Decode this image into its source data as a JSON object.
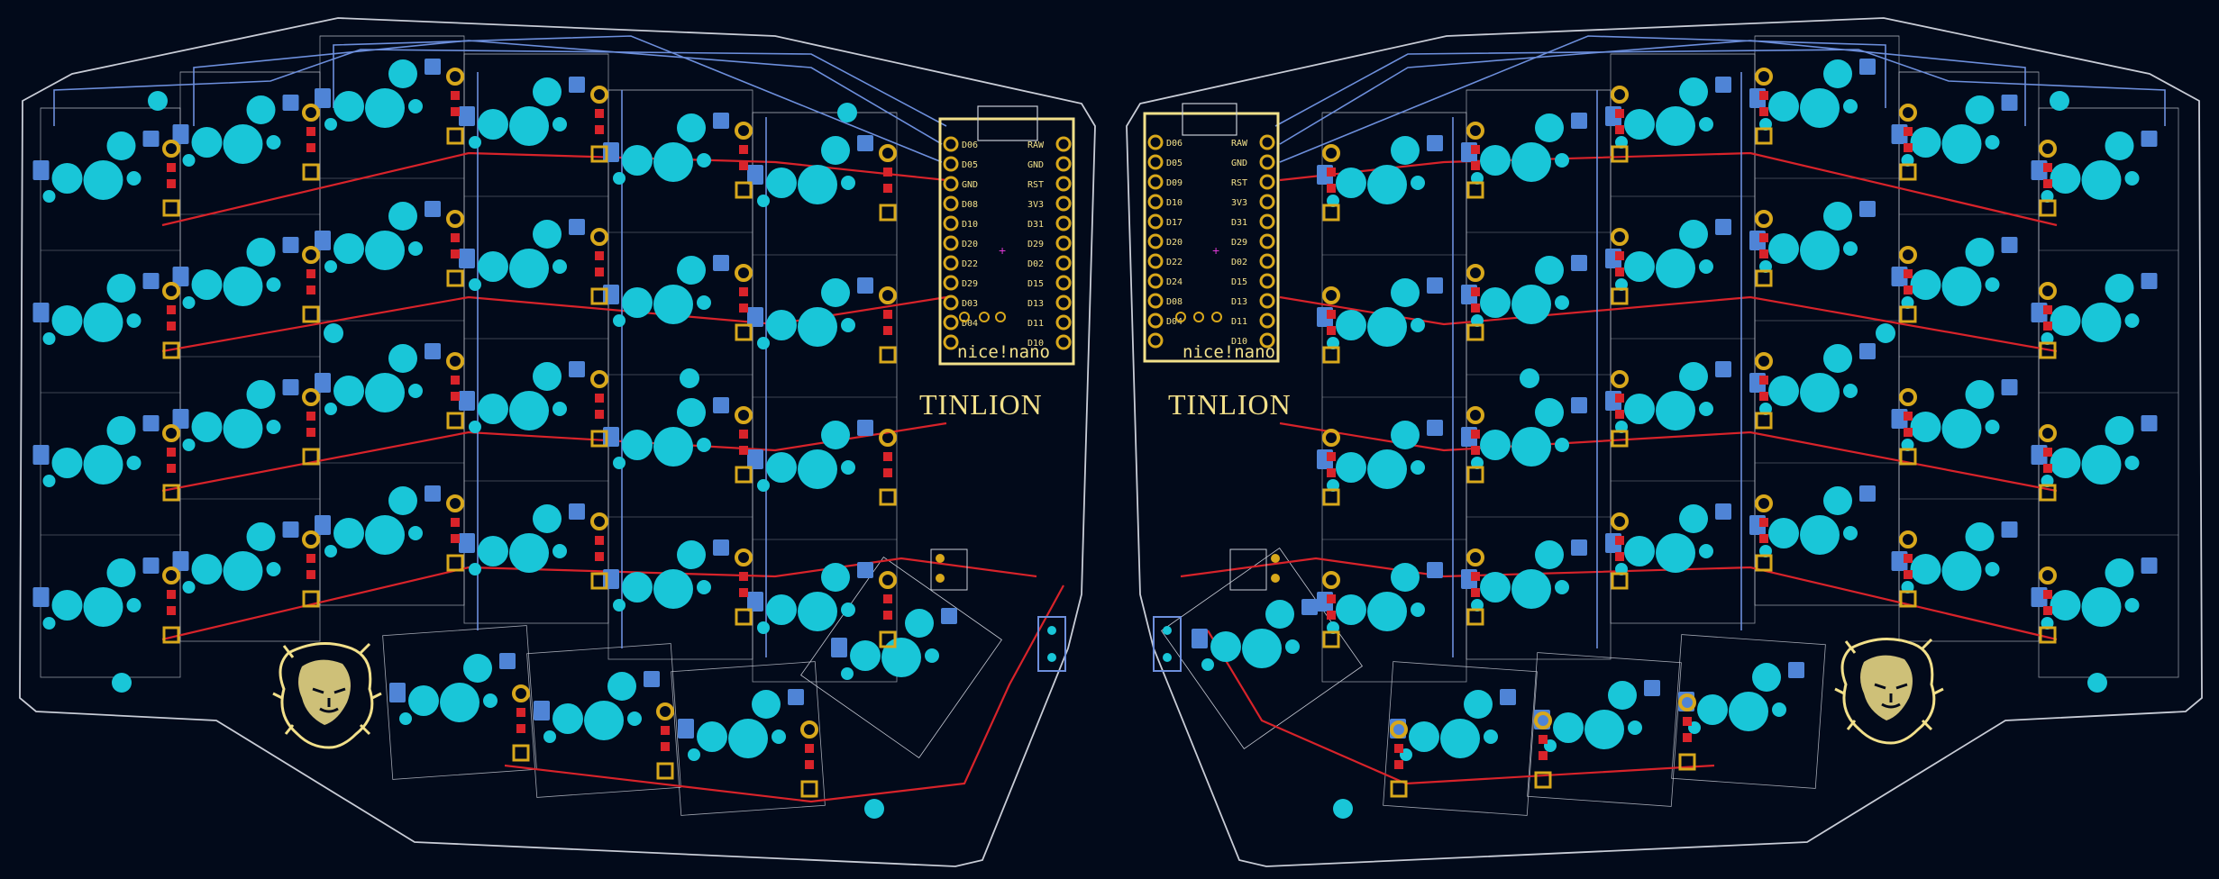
{
  "left": {
    "brand_label": "TINLION",
    "mcu_label": "nice!nano",
    "pins_left": [
      "D06",
      "D05",
      "GND",
      "D08",
      "D10",
      "D20",
      "D22",
      "D29",
      "D03",
      "D04"
    ],
    "pins_right": [
      "RAW",
      "GND",
      "RST",
      "3V3",
      "D31",
      "D29",
      "D02",
      "D15",
      "D13",
      "D11",
      "D10"
    ]
  },
  "right": {
    "brand_label": "TINLION",
    "mcu_label": "nice!nano",
    "pins_left": [
      "D06",
      "D05",
      "D09",
      "D10",
      "D17",
      "D20",
      "D22",
      "D24",
      "D08",
      "D04"
    ],
    "pins_right": [
      "RAW",
      "GND",
      "RST",
      "3V3",
      "D31",
      "D29",
      "D02",
      "D15",
      "D13",
      "D11",
      "D10"
    ]
  },
  "colors": {
    "background": "#020a1a",
    "outline": "#c8ccd6",
    "trace_red": "#d8232a",
    "trace_blue": "#6d8fdc",
    "pad_cyan": "#19c6d8",
    "label_blue": "#4f84d6",
    "silk_gold": "#f2e08a",
    "pad_gold": "#d8a81c"
  },
  "icons": [
    "lion-head-logo",
    "mcu-module",
    "reset-button",
    "power-switch"
  ]
}
